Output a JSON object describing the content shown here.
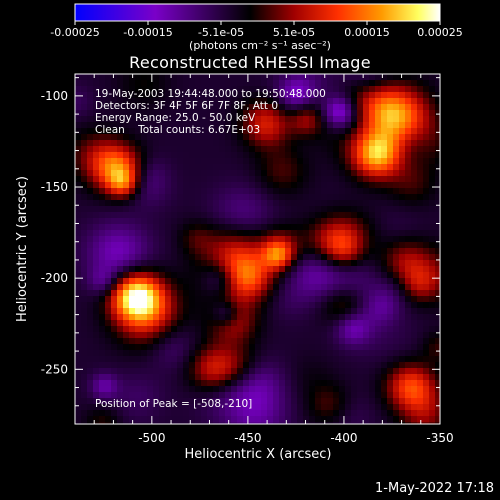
{
  "title": "Reconstructed RHESSI Image",
  "timestamp": "1-May-2022 17:18",
  "colorbar": {
    "tick_labels": [
      "-0.00025",
      "-0.00015",
      "-5.1e-05",
      "5.1e-05",
      "0.00015",
      "0.00025"
    ],
    "unit_label": "(photons cm⁻² s⁻¹ asec⁻²)",
    "colors": [
      "#0000ff",
      "#7a00c8",
      "#000000",
      "#a00000",
      "#ff3000",
      "#ff9a00",
      "#ffff60",
      "#ffffff"
    ]
  },
  "info": {
    "line1": "19-May-2003 19:44:48.000 to 19:50:48.000",
    "line2": "Detectors: 3F 4F 5F 6F 7F 8F, Att 0",
    "line3": "Energy Range: 25.0 - 50.0 keV",
    "line4": "Clean    Total counts: 6.67E+03",
    "peak": "Position of Peak = [-508,-210]"
  },
  "chart_data": {
    "type": "heatmap",
    "title": "Reconstructed RHESSI Image",
    "xlabel": "Heliocentric X (arcsec)",
    "ylabel": "Heliocentric Y (arcsec)",
    "xlim": [
      -540,
      -350
    ],
    "ylim": [
      -280,
      -88
    ],
    "x_ticks": [
      -500,
      -450,
      -400,
      -350
    ],
    "y_ticks": [
      -100,
      -150,
      -200,
      -250
    ],
    "x_tick_labels": [
      "-500",
      "-450",
      "-400",
      "-350"
    ],
    "y_tick_labels": [
      "-100",
      "-150",
      "-200",
      "-250"
    ],
    "zlim": [
      -0.00025,
      0.00025
    ],
    "peak_position": [
      -508,
      -210
    ],
    "bright_sources": [
      {
        "x": -508,
        "y": -210,
        "value": 0.00025
      },
      {
        "x": -383,
        "y": -132,
        "value": 0.00022
      },
      {
        "x": -518,
        "y": -140,
        "value": 0.00018
      },
      {
        "x": -450,
        "y": -200,
        "value": 0.00014
      },
      {
        "x": -440,
        "y": -115,
        "value": 0.00013
      },
      {
        "x": -365,
        "y": -260,
        "value": 0.00016
      },
      {
        "x": -468,
        "y": -250,
        "value": 0.00012
      },
      {
        "x": -405,
        "y": -180,
        "value": 0.00011
      }
    ]
  }
}
